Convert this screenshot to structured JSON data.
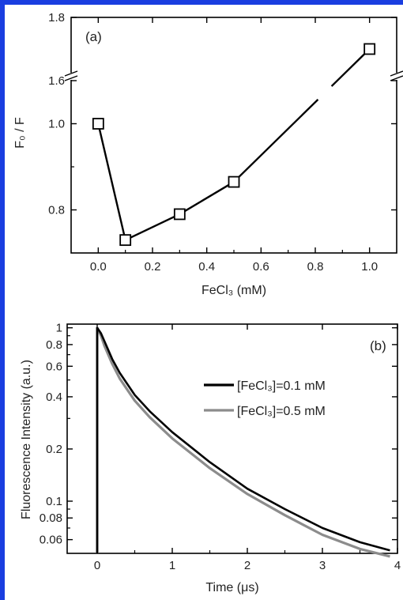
{
  "chart_data": [
    {
      "panel": "(a)",
      "type": "line",
      "xlabel": "FeCl₃ (mM)",
      "ylabel": "F₀ / F",
      "x_ticks": [
        "0.0",
        "0.2",
        "0.4",
        "0.6",
        "0.8",
        "1.0"
      ],
      "y_ticks": [
        "0.8",
        "1.0",
        "1.6",
        "1.8"
      ],
      "y_axis_break": [
        1.1,
        1.6
      ],
      "series": [
        {
          "marker": "open-square",
          "x": [
            0.0,
            0.1,
            0.3,
            0.5,
            1.0
          ],
          "y": [
            1.0,
            0.73,
            0.79,
            0.865,
            1.7
          ]
        }
      ],
      "grid": false
    },
    {
      "panel": "(b)",
      "type": "line",
      "xlabel": "Time (μs)",
      "ylabel": "Fluorescence Intensity (a.u.)",
      "x_ticks": [
        "0",
        "1",
        "2",
        "3",
        "4"
      ],
      "y_ticks": [
        "0.06",
        "0.08",
        "0.1",
        "0.2",
        "0.4",
        "0.6",
        "0.8",
        "1"
      ],
      "y_scale": "log",
      "xlim": [
        -0.4,
        4.0
      ],
      "ylim": [
        0.05,
        1.05
      ],
      "legend_position": "top-right",
      "series": [
        {
          "name": "[FeCl₃]=0.1 mM",
          "color": "#000000",
          "x": [
            0.0,
            0.05,
            0.1,
            0.2,
            0.3,
            0.5,
            0.7,
            1.0,
            1.5,
            2.0,
            2.5,
            3.0,
            3.5,
            3.9
          ],
          "y": [
            1.0,
            0.93,
            0.83,
            0.66,
            0.55,
            0.41,
            0.33,
            0.25,
            0.168,
            0.118,
            0.09,
            0.07,
            0.058,
            0.052
          ]
        },
        {
          "name": "[FeCl₃]=0.5 mM",
          "color": "#8c8c8c",
          "x": [
            0.0,
            0.05,
            0.1,
            0.2,
            0.3,
            0.5,
            0.7,
            1.0,
            1.5,
            2.0,
            2.5,
            3.0,
            3.5,
            3.9
          ],
          "y": [
            1.0,
            0.9,
            0.78,
            0.62,
            0.51,
            0.38,
            0.305,
            0.23,
            0.155,
            0.11,
            0.083,
            0.064,
            0.053,
            0.048
          ]
        }
      ],
      "grid": false
    }
  ]
}
